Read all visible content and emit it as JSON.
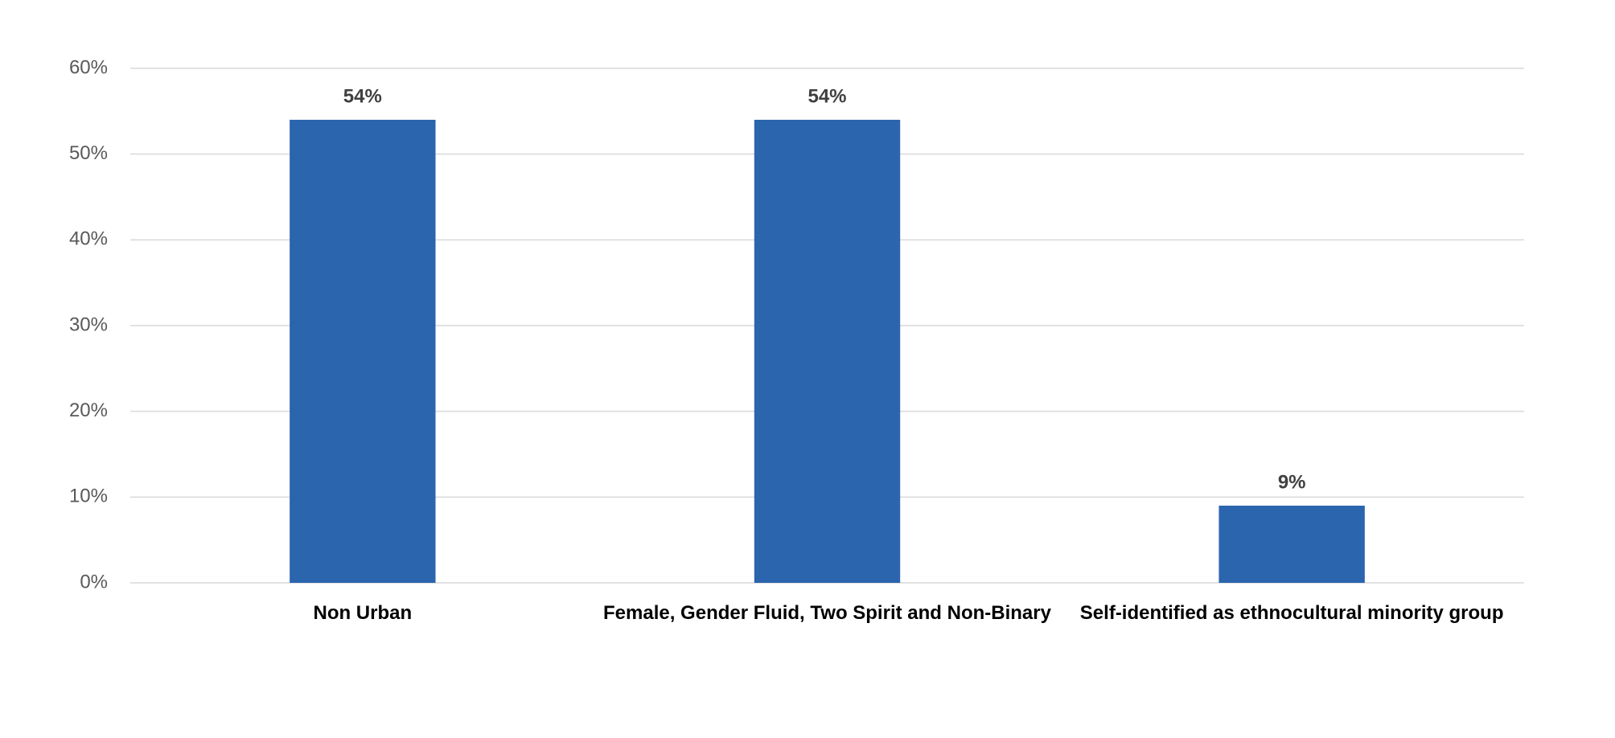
{
  "chart_data": {
    "type": "bar",
    "categories": [
      "Non Urban",
      "Female, Gender Fluid, Two Spirit and Non-Binary",
      "Self-identified as ethnocultural minority group"
    ],
    "values": [
      54,
      54,
      9
    ],
    "value_labels": [
      "54%",
      "54%",
      "9%"
    ],
    "color": "#2b65ae",
    "ylim": [
      0,
      60
    ],
    "yticks": [
      {
        "value": 0,
        "label": "0%"
      },
      {
        "value": 10,
        "label": "10%"
      },
      {
        "value": 20,
        "label": "20%"
      },
      {
        "value": 30,
        "label": "30%"
      },
      {
        "value": 40,
        "label": "40%"
      },
      {
        "value": 50,
        "label": "50%"
      },
      {
        "value": 60,
        "label": "60%"
      }
    ],
    "grid": true
  }
}
